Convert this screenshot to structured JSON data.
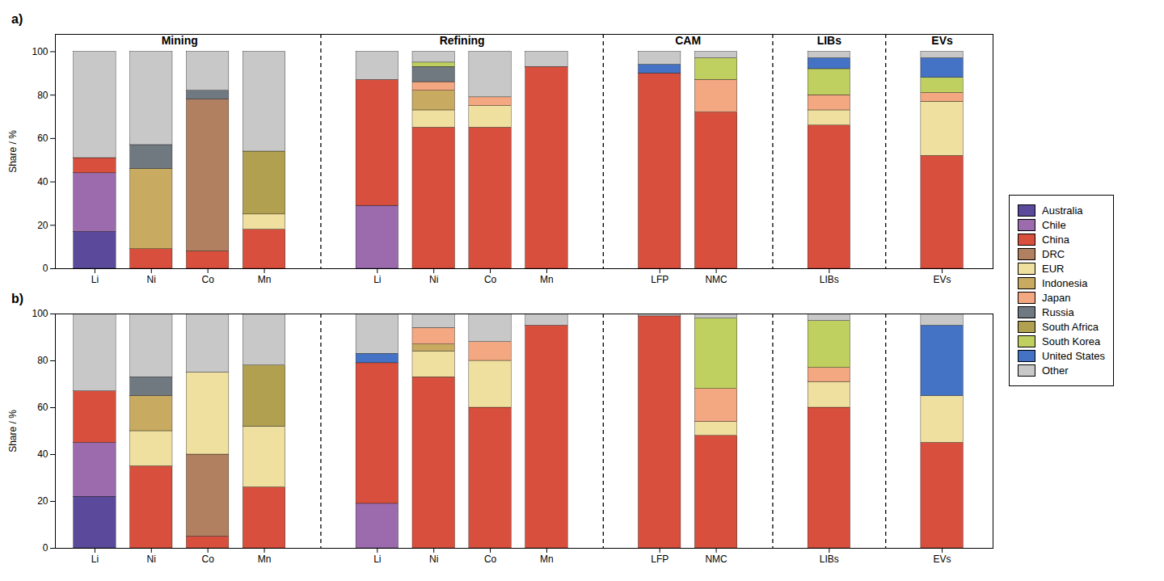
{
  "chart_data": [
    {
      "type": "bar",
      "title": "a)",
      "stacked": true,
      "legend": "right",
      "grid": false,
      "ylabel": "Share / %",
      "ylim": [
        0,
        108
      ],
      "yticks": [
        0,
        20,
        40,
        60,
        80,
        100
      ],
      "categories": [
        "Li",
        "Ni",
        "Co",
        "Mn",
        "Li",
        "Ni",
        "Co",
        "Mn",
        "LFP",
        "NMC",
        "LIBs",
        "EVs"
      ],
      "sections": [
        {
          "label": "Mining",
          "categories": [
            "Li",
            "Ni",
            "Co",
            "Mn"
          ]
        },
        {
          "label": "Refining",
          "categories": [
            "Li",
            "Ni",
            "Co",
            "Mn"
          ]
        },
        {
          "label": "CAM",
          "categories": [
            "LFP",
            "NMC"
          ]
        },
        {
          "label": "LIBs",
          "categories": [
            "LIBs"
          ]
        },
        {
          "label": "EVs",
          "categories": [
            "EVs"
          ]
        }
      ],
      "series": [
        {
          "name": "Australia",
          "color": "#5b4a9b",
          "values": [
            17,
            null,
            null,
            null,
            null,
            null,
            null,
            null,
            null,
            null,
            null,
            null
          ]
        },
        {
          "name": "Chile",
          "color": "#9b6bae",
          "values": [
            27,
            null,
            null,
            null,
            29,
            null,
            null,
            null,
            null,
            null,
            null,
            null
          ]
        },
        {
          "name": "China",
          "color": "#d94f3d",
          "values": [
            7,
            9,
            8,
            18,
            58,
            65,
            65,
            93,
            90,
            72,
            66,
            52
          ]
        },
        {
          "name": "DRC",
          "color": "#b08060",
          "values": [
            null,
            null,
            70,
            null,
            null,
            null,
            null,
            null,
            null,
            null,
            null,
            null
          ]
        },
        {
          "name": "EUR",
          "color": "#f0e0a0",
          "values": [
            null,
            null,
            null,
            7,
            null,
            8,
            10,
            null,
            null,
            null,
            7,
            25
          ]
        },
        {
          "name": "Indonesia",
          "color": "#c8aa60",
          "values": [
            null,
            37,
            null,
            null,
            null,
            9,
            null,
            null,
            null,
            null,
            null,
            null
          ]
        },
        {
          "name": "Japan",
          "color": "#f4a882",
          "values": [
            null,
            null,
            null,
            null,
            null,
            4,
            4,
            null,
            null,
            15,
            7,
            4
          ]
        },
        {
          "name": "Russia",
          "color": "#707880",
          "values": [
            0,
            11,
            4,
            null,
            null,
            7,
            null,
            null,
            null,
            null,
            null,
            null
          ]
        },
        {
          "name": "South Africa",
          "color": "#b0a050",
          "values": [
            null,
            null,
            null,
            29,
            null,
            null,
            null,
            null,
            null,
            null,
            null,
            null
          ]
        },
        {
          "name": "South Korea",
          "color": "#c0d060",
          "values": [
            null,
            null,
            null,
            null,
            null,
            2,
            null,
            null,
            null,
            10,
            12,
            7
          ]
        },
        {
          "name": "United States",
          "color": "#4472c4",
          "values": [
            null,
            null,
            null,
            null,
            null,
            null,
            null,
            null,
            4,
            null,
            5,
            9
          ]
        },
        {
          "name": "Other",
          "color": "#c8c8c8",
          "values": [
            49,
            43,
            18,
            46,
            13,
            5,
            21,
            7,
            6,
            3,
            3,
            3
          ]
        }
      ]
    },
    {
      "type": "bar",
      "title": "b)",
      "stacked": true,
      "grid": false,
      "ylabel": "Share / %",
      "ylim": [
        0,
        100
      ],
      "yticks": [
        0,
        20,
        40,
        60,
        80,
        100
      ],
      "categories": [
        "Li",
        "Ni",
        "Co",
        "Mn",
        "Li",
        "Ni",
        "Co",
        "Mn",
        "LFP",
        "NMC",
        "LIBs",
        "EVs"
      ],
      "series": [
        {
          "name": "Australia",
          "color": "#5b4a9b",
          "values": [
            22,
            null,
            null,
            null,
            null,
            null,
            null,
            null,
            null,
            null,
            null,
            null
          ]
        },
        {
          "name": "Chile",
          "color": "#9b6bae",
          "values": [
            23,
            null,
            null,
            null,
            19,
            null,
            null,
            null,
            null,
            null,
            null,
            null
          ]
        },
        {
          "name": "China",
          "color": "#d94f3d",
          "values": [
            22,
            35,
            5,
            26,
            60,
            73,
            60,
            95,
            99,
            48,
            60,
            45
          ]
        },
        {
          "name": "DRC",
          "color": "#b08060",
          "values": [
            null,
            null,
            35,
            null,
            null,
            null,
            null,
            null,
            null,
            null,
            null,
            null
          ]
        },
        {
          "name": "EUR",
          "color": "#f0e0a0",
          "values": [
            null,
            15,
            35,
            26,
            null,
            11,
            20,
            null,
            null,
            6,
            11,
            20
          ]
        },
        {
          "name": "Indonesia",
          "color": "#c8aa60",
          "values": [
            null,
            15,
            null,
            null,
            null,
            3,
            null,
            null,
            null,
            null,
            null,
            null
          ]
        },
        {
          "name": "Japan",
          "color": "#f4a882",
          "values": [
            null,
            null,
            null,
            null,
            null,
            7,
            8,
            null,
            null,
            14,
            6,
            null
          ]
        },
        {
          "name": "Russia",
          "color": "#707880",
          "values": [
            null,
            8,
            null,
            null,
            null,
            null,
            null,
            null,
            null,
            null,
            null,
            null
          ]
        },
        {
          "name": "South Africa",
          "color": "#b0a050",
          "values": [
            null,
            null,
            null,
            26,
            null,
            null,
            null,
            null,
            null,
            null,
            null,
            null
          ]
        },
        {
          "name": "South Korea",
          "color": "#c0d060",
          "values": [
            null,
            null,
            null,
            null,
            null,
            null,
            null,
            null,
            null,
            30,
            20,
            null
          ]
        },
        {
          "name": "United States",
          "color": "#4472c4",
          "values": [
            null,
            null,
            null,
            null,
            4,
            null,
            null,
            null,
            null,
            null,
            null,
            30
          ]
        },
        {
          "name": "Other",
          "color": "#c8c8c8",
          "values": [
            33,
            27,
            25,
            22,
            17,
            6,
            12,
            5,
            1,
            2,
            3,
            5
          ]
        }
      ]
    }
  ]
}
